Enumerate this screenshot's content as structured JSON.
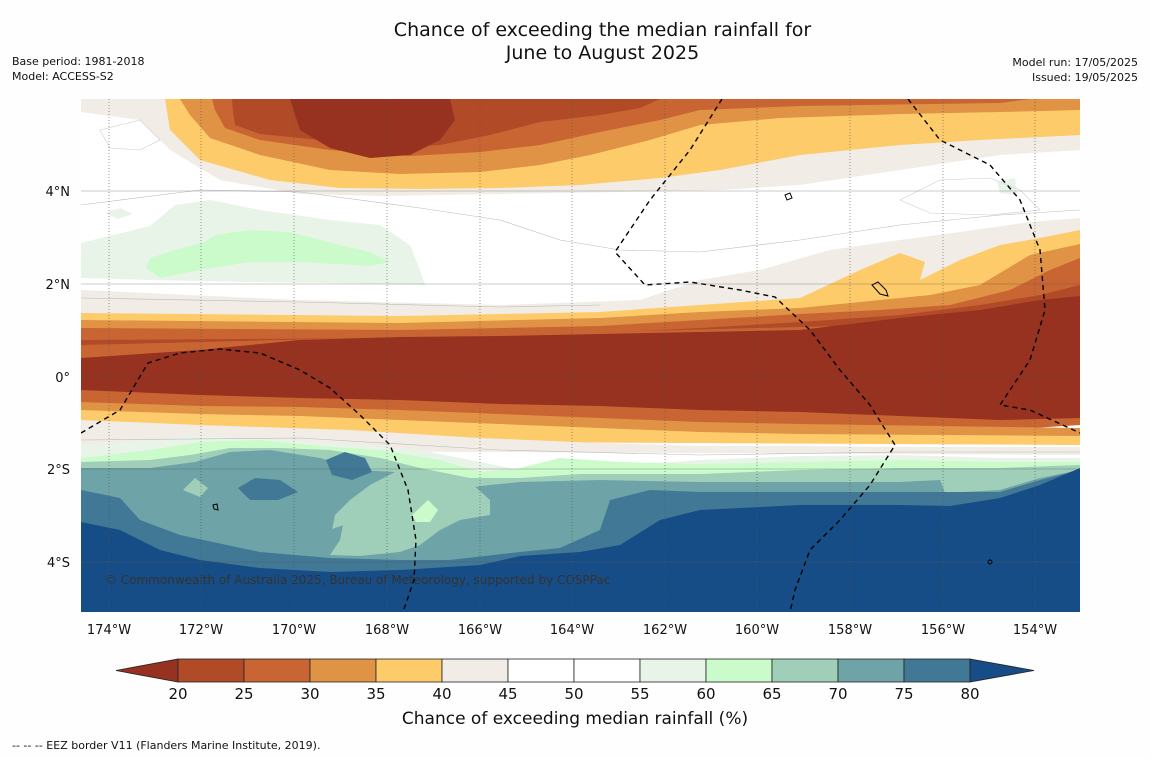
{
  "title": {
    "line1": "Chance of exceeding the median rainfall for",
    "line2": "June to August 2025"
  },
  "meta_left": {
    "base_period": "Base period: 1981-2018",
    "model": "Model: ACCESS-S2"
  },
  "meta_right": {
    "model_run": "Model run: 17/05/2025",
    "issued": "Issued: 19/05/2025"
  },
  "copyright": "© Commonwealth of Australia 2025, Bureau of Meteorology, supported by COSPPac",
  "lat_labels": [
    "4°N",
    "2°N",
    "0°",
    "2°S",
    "4°S"
  ],
  "lon_labels": [
    "174°W",
    "172°W",
    "170°W",
    "168°W",
    "166°W",
    "164°W",
    "162°W",
    "160°W",
    "158°W",
    "156°W",
    "154°W"
  ],
  "colorbar": {
    "title": "Chance of exceeding median rainfall (%)",
    "levels": [
      "20",
      "25",
      "30",
      "35",
      "40",
      "45",
      "50",
      "55",
      "60",
      "65",
      "70",
      "75",
      "80"
    ],
    "colors": [
      "#973120",
      "#b14a27",
      "#c96533",
      "#e09245",
      "#fecb6b",
      "#f1ece6",
      "#ffffff",
      "#ffffff",
      "#e9f4e8",
      "#cbfbca",
      "#9fcfb8",
      "#6ea3a7",
      "#417896",
      "#174d86"
    ]
  },
  "footer": "--  --  -- EEZ border V11 (Flanders Marine Institute, 2019)."
}
